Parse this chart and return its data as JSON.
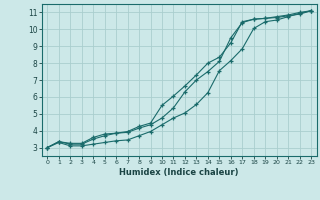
{
  "xlabel": "Humidex (Indice chaleur)",
  "bg_color": "#cce8e8",
  "grid_color": "#aacece",
  "line_color": "#1a6b6b",
  "xlim": [
    -0.5,
    23.5
  ],
  "ylim": [
    2.5,
    11.5
  ],
  "xticks": [
    0,
    1,
    2,
    3,
    4,
    5,
    6,
    7,
    8,
    9,
    10,
    11,
    12,
    13,
    14,
    15,
    16,
    17,
    18,
    19,
    20,
    21,
    22,
    23
  ],
  "yticks": [
    3,
    4,
    5,
    6,
    7,
    8,
    9,
    10,
    11
  ],
  "line1_x": [
    0,
    1,
    2,
    3,
    4,
    5,
    6,
    7,
    8,
    9,
    10,
    11,
    12,
    13,
    14,
    15,
    16,
    17,
    18,
    19,
    20,
    21,
    22,
    23
  ],
  "line1_y": [
    3.0,
    3.35,
    3.25,
    3.25,
    3.6,
    3.8,
    3.85,
    3.9,
    4.15,
    4.35,
    4.75,
    5.35,
    6.3,
    7.0,
    7.5,
    8.1,
    9.5,
    10.4,
    10.6,
    10.65,
    10.7,
    10.8,
    10.9,
    11.1
  ],
  "line2_x": [
    0,
    1,
    2,
    3,
    4,
    5,
    6,
    7,
    8,
    9,
    10,
    11,
    12,
    13,
    14,
    15,
    16,
    17,
    18,
    19,
    20,
    21,
    22,
    23
  ],
  "line2_y": [
    3.0,
    3.35,
    3.2,
    3.2,
    3.5,
    3.7,
    3.85,
    3.95,
    4.25,
    4.45,
    5.5,
    6.05,
    6.65,
    7.3,
    8.0,
    8.35,
    9.2,
    10.45,
    10.6,
    10.65,
    10.75,
    10.85,
    11.0,
    11.1
  ],
  "line3_x": [
    0,
    1,
    2,
    3,
    4,
    5,
    6,
    7,
    8,
    9,
    10,
    11,
    12,
    13,
    14,
    15,
    16,
    17,
    18,
    19,
    20,
    21,
    22,
    23
  ],
  "line3_y": [
    3.0,
    3.3,
    3.1,
    3.1,
    3.2,
    3.3,
    3.4,
    3.45,
    3.7,
    3.95,
    4.35,
    4.75,
    5.05,
    5.55,
    6.25,
    7.55,
    8.15,
    8.85,
    10.05,
    10.45,
    10.55,
    10.75,
    10.95,
    11.1
  ]
}
